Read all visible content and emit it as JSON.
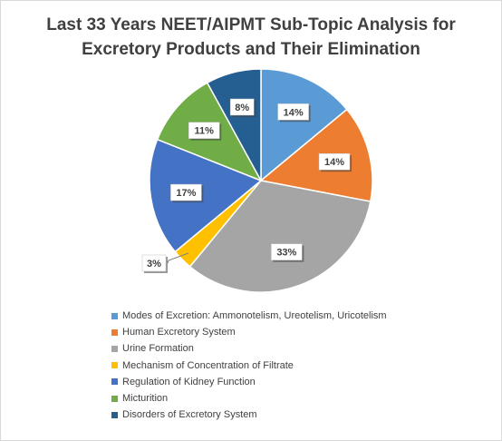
{
  "chart_data": {
    "type": "pie",
    "title_lines": [
      "Last 33 Years NEET/AIPMT Sub-Topic Analysis for",
      "Excretory Products and Their Elimination"
    ],
    "slices": [
      {
        "name": "Modes of Excretion: Ammonotelism, Ureotelism, Uricotelism",
        "value": 14,
        "label": "14%",
        "color": "#5b9bd5"
      },
      {
        "name": "Human Excretory System",
        "value": 14,
        "label": "14%",
        "color": "#ed7d31"
      },
      {
        "name": "Urine Formation",
        "value": 33,
        "label": "33%",
        "color": "#a5a5a5"
      },
      {
        "name": "Mechanism of Concentration of Filtrate",
        "value": 3,
        "label": "3%",
        "color": "#ffc000"
      },
      {
        "name": "Regulation of Kidney Function",
        "value": 17,
        "label": "17%",
        "color": "#4472c4"
      },
      {
        "name": "Micturition",
        "value": 11,
        "label": "11%",
        "color": "#70ad47"
      },
      {
        "name": "Disorders of Excretory System",
        "value": 8,
        "label": "8%",
        "color": "#255e91"
      }
    ],
    "legend_position": "bottom"
  }
}
